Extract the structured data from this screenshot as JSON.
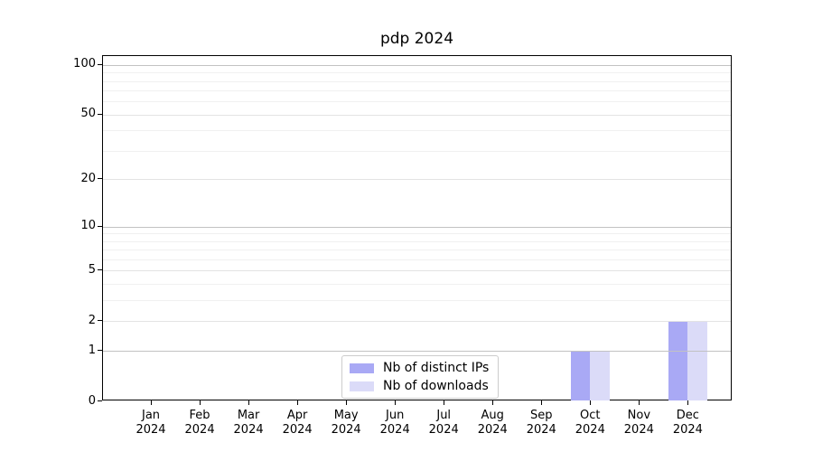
{
  "title": "pdp 2024",
  "chart_data": {
    "type": "bar",
    "title": "pdp 2024",
    "categories": [
      "Jan 2024",
      "Feb 2024",
      "Mar 2024",
      "Apr 2024",
      "May 2024",
      "Jun 2024",
      "Jul 2024",
      "Aug 2024",
      "Sep 2024",
      "Oct 2024",
      "Nov 2024",
      "Dec 2024"
    ],
    "series": [
      {
        "name": "Nb of distinct IPs",
        "color": "#a9a9f5",
        "values": [
          0,
          0,
          0,
          0,
          0,
          0,
          0,
          0,
          0,
          1,
          0,
          2
        ]
      },
      {
        "name": "Nb of downloads",
        "color": "#dbdbf8",
        "values": [
          0,
          0,
          0,
          0,
          0,
          0,
          0,
          0,
          0,
          1,
          0,
          2
        ]
      }
    ],
    "xlabel": "",
    "ylabel": "",
    "yscale": "log1p",
    "ylim": [
      0,
      113
    ],
    "y_ticks": [
      0,
      1,
      2,
      5,
      10,
      20,
      50,
      100
    ],
    "y_minor_ticks": [
      3,
      4,
      6,
      7,
      8,
      9,
      30,
      40,
      60,
      70,
      80,
      90
    ],
    "grid": "horizontal",
    "legend_position": "lower center",
    "grid_color_major": "#c2c2c2",
    "grid_color_labeled": "#e3e3e3",
    "grid_color_minor": "#f0f0f0"
  }
}
